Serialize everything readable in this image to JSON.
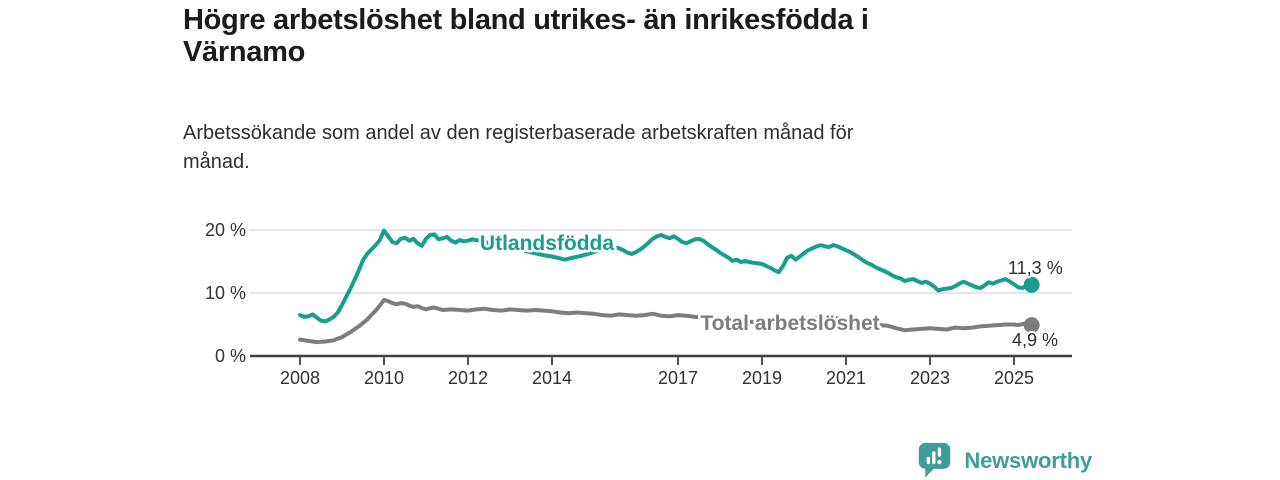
{
  "header": {
    "title": "Högre arbetslöshet bland utrikes- än inrikesfödda i\nVärnamo",
    "subtitle": "Arbetssökande som andel av den registerbaserade arbetskraften månad för\nmånad."
  },
  "footer": {
    "brand": "Newsworthy",
    "brand_color": "#3f9e96",
    "logo_icon": "bar-chart-speech-bubble-icon"
  },
  "chart_data": {
    "type": "line",
    "unit": "%",
    "grid": "horizontal",
    "legend_position": "inline-labels",
    "x_ticks": [
      2008,
      2010,
      2012,
      2014,
      2017,
      2019,
      2021,
      2023,
      2025
    ],
    "x_range": [
      2006.8,
      2026.4
    ],
    "y_ticks": [
      {
        "value": 0,
        "label": "0 %"
      },
      {
        "value": 10,
        "label": "10 %"
      },
      {
        "value": 20,
        "label": "20 %"
      }
    ],
    "y_range": [
      0,
      21
    ],
    "colors": {
      "grid": "#dedede",
      "axis": "#3f3f3f",
      "tick_text": "#333333",
      "end_label_text": "#2e2e2e"
    },
    "series": [
      {
        "name": "Utlandsfödda",
        "color": "#179e8c",
        "end_label": "11,3 %",
        "end_value": 11.3,
        "points": [
          [
            2008.0,
            6.5
          ],
          [
            2008.1,
            6.2
          ],
          [
            2008.2,
            6.3
          ],
          [
            2008.3,
            6.6
          ],
          [
            2008.4,
            6.1
          ],
          [
            2008.5,
            5.6
          ],
          [
            2008.6,
            5.5
          ],
          [
            2008.7,
            5.8
          ],
          [
            2008.8,
            6.2
          ],
          [
            2008.9,
            6.9
          ],
          [
            2009.0,
            8.1
          ],
          [
            2009.1,
            9.4
          ],
          [
            2009.2,
            10.7
          ],
          [
            2009.3,
            12.1
          ],
          [
            2009.4,
            13.6
          ],
          [
            2009.5,
            15.2
          ],
          [
            2009.6,
            16.2
          ],
          [
            2009.7,
            16.9
          ],
          [
            2009.8,
            17.6
          ],
          [
            2009.9,
            18.4
          ],
          [
            2010.0,
            19.9
          ],
          [
            2010.1,
            19.0
          ],
          [
            2010.2,
            18.1
          ],
          [
            2010.3,
            17.9
          ],
          [
            2010.4,
            18.6
          ],
          [
            2010.5,
            18.8
          ],
          [
            2010.6,
            18.3
          ],
          [
            2010.7,
            18.6
          ],
          [
            2010.8,
            17.9
          ],
          [
            2010.9,
            17.5
          ],
          [
            2011.0,
            18.6
          ],
          [
            2011.1,
            19.2
          ],
          [
            2011.2,
            19.3
          ],
          [
            2011.3,
            18.5
          ],
          [
            2011.4,
            18.7
          ],
          [
            2011.5,
            18.9
          ],
          [
            2011.6,
            18.3
          ],
          [
            2011.7,
            18.0
          ],
          [
            2011.8,
            18.4
          ],
          [
            2011.9,
            18.2
          ],
          [
            2012.0,
            18.3
          ],
          [
            2012.1,
            18.5
          ],
          [
            2012.2,
            18.4
          ],
          [
            2012.4,
            18.1
          ],
          [
            2012.6,
            17.8
          ],
          [
            2012.8,
            17.5
          ],
          [
            2013.0,
            17.2
          ],
          [
            2013.2,
            16.9
          ],
          [
            2013.4,
            16.6
          ],
          [
            2013.6,
            16.3
          ],
          [
            2013.8,
            16.0
          ],
          [
            2014.0,
            15.8
          ],
          [
            2014.2,
            15.5
          ],
          [
            2014.3,
            15.3
          ],
          [
            2014.5,
            15.6
          ],
          [
            2014.7,
            15.9
          ],
          [
            2014.9,
            16.3
          ],
          [
            2015.1,
            16.7
          ],
          [
            2015.3,
            17.0
          ],
          [
            2015.5,
            17.2
          ],
          [
            2015.6,
            17.1
          ],
          [
            2015.7,
            16.8
          ],
          [
            2015.8,
            16.4
          ],
          [
            2015.9,
            16.2
          ],
          [
            2016.0,
            16.5
          ],
          [
            2016.1,
            16.9
          ],
          [
            2016.2,
            17.4
          ],
          [
            2016.3,
            18.0
          ],
          [
            2016.4,
            18.6
          ],
          [
            2016.5,
            19.0
          ],
          [
            2016.6,
            19.2
          ],
          [
            2016.7,
            18.9
          ],
          [
            2016.8,
            18.7
          ],
          [
            2016.9,
            19.0
          ],
          [
            2017.0,
            18.6
          ],
          [
            2017.1,
            18.1
          ],
          [
            2017.2,
            17.9
          ],
          [
            2017.3,
            18.2
          ],
          [
            2017.4,
            18.5
          ],
          [
            2017.5,
            18.6
          ],
          [
            2017.6,
            18.3
          ],
          [
            2017.7,
            17.8
          ],
          [
            2017.8,
            17.3
          ],
          [
            2017.9,
            16.9
          ],
          [
            2018.0,
            16.4
          ],
          [
            2018.1,
            16.0
          ],
          [
            2018.2,
            15.6
          ],
          [
            2018.3,
            15.1
          ],
          [
            2018.4,
            15.3
          ],
          [
            2018.5,
            14.9
          ],
          [
            2018.6,
            15.1
          ],
          [
            2018.7,
            14.9
          ],
          [
            2018.8,
            14.8
          ],
          [
            2018.9,
            14.7
          ],
          [
            2019.0,
            14.6
          ],
          [
            2019.1,
            14.3
          ],
          [
            2019.2,
            14.0
          ],
          [
            2019.3,
            13.6
          ],
          [
            2019.4,
            13.3
          ],
          [
            2019.5,
            14.3
          ],
          [
            2019.6,
            15.6
          ],
          [
            2019.7,
            15.9
          ],
          [
            2019.8,
            15.3
          ],
          [
            2019.9,
            15.8
          ],
          [
            2020.0,
            16.3
          ],
          [
            2020.1,
            16.8
          ],
          [
            2020.2,
            17.1
          ],
          [
            2020.3,
            17.4
          ],
          [
            2020.4,
            17.6
          ],
          [
            2020.5,
            17.4
          ],
          [
            2020.6,
            17.3
          ],
          [
            2020.7,
            17.6
          ],
          [
            2020.8,
            17.4
          ],
          [
            2020.9,
            17.1
          ],
          [
            2021.0,
            16.8
          ],
          [
            2021.1,
            16.5
          ],
          [
            2021.2,
            16.1
          ],
          [
            2021.3,
            15.7
          ],
          [
            2021.4,
            15.2
          ],
          [
            2021.5,
            14.8
          ],
          [
            2021.6,
            14.5
          ],
          [
            2021.7,
            14.1
          ],
          [
            2021.8,
            13.8
          ],
          [
            2021.9,
            13.5
          ],
          [
            2022.0,
            13.2
          ],
          [
            2022.1,
            12.8
          ],
          [
            2022.2,
            12.5
          ],
          [
            2022.3,
            12.3
          ],
          [
            2022.4,
            11.9
          ],
          [
            2022.5,
            12.1
          ],
          [
            2022.6,
            12.2
          ],
          [
            2022.7,
            11.9
          ],
          [
            2022.8,
            11.6
          ],
          [
            2022.9,
            11.8
          ],
          [
            2023.0,
            11.5
          ],
          [
            2023.1,
            11.0
          ],
          [
            2023.2,
            10.4
          ],
          [
            2023.3,
            10.6
          ],
          [
            2023.4,
            10.7
          ],
          [
            2023.5,
            10.8
          ],
          [
            2023.6,
            11.1
          ],
          [
            2023.7,
            11.5
          ],
          [
            2023.8,
            11.8
          ],
          [
            2023.9,
            11.5
          ],
          [
            2024.0,
            11.2
          ],
          [
            2024.1,
            10.9
          ],
          [
            2024.2,
            10.8
          ],
          [
            2024.3,
            11.2
          ],
          [
            2024.4,
            11.7
          ],
          [
            2024.5,
            11.5
          ],
          [
            2024.6,
            11.8
          ],
          [
            2024.7,
            12.0
          ],
          [
            2024.8,
            12.2
          ],
          [
            2024.9,
            11.8
          ],
          [
            2025.0,
            11.4
          ],
          [
            2025.1,
            10.9
          ],
          [
            2025.2,
            10.8
          ],
          [
            2025.3,
            11.1
          ],
          [
            2025.42,
            11.3
          ]
        ]
      },
      {
        "name": "Total arbetslöshet",
        "color": "#7d7d7d",
        "end_label": "4,9 %",
        "end_value": 4.9,
        "points": [
          [
            2008.0,
            2.6
          ],
          [
            2008.2,
            2.4
          ],
          [
            2008.4,
            2.2
          ],
          [
            2008.6,
            2.3
          ],
          [
            2008.8,
            2.5
          ],
          [
            2009.0,
            3.0
          ],
          [
            2009.2,
            3.8
          ],
          [
            2009.4,
            4.7
          ],
          [
            2009.6,
            5.8
          ],
          [
            2009.8,
            7.2
          ],
          [
            2009.9,
            8.0
          ],
          [
            2010.0,
            8.9
          ],
          [
            2010.1,
            8.7
          ],
          [
            2010.2,
            8.4
          ],
          [
            2010.3,
            8.2
          ],
          [
            2010.4,
            8.4
          ],
          [
            2010.5,
            8.3
          ],
          [
            2010.6,
            8.0
          ],
          [
            2010.7,
            7.8
          ],
          [
            2010.8,
            7.9
          ],
          [
            2010.9,
            7.6
          ],
          [
            2011.0,
            7.4
          ],
          [
            2011.1,
            7.6
          ],
          [
            2011.2,
            7.7
          ],
          [
            2011.3,
            7.5
          ],
          [
            2011.4,
            7.3
          ],
          [
            2011.6,
            7.4
          ],
          [
            2011.8,
            7.3
          ],
          [
            2012.0,
            7.2
          ],
          [
            2012.2,
            7.4
          ],
          [
            2012.4,
            7.5
          ],
          [
            2012.6,
            7.3
          ],
          [
            2012.8,
            7.2
          ],
          [
            2013.0,
            7.4
          ],
          [
            2013.2,
            7.3
          ],
          [
            2013.4,
            7.2
          ],
          [
            2013.6,
            7.3
          ],
          [
            2013.8,
            7.2
          ],
          [
            2014.0,
            7.1
          ],
          [
            2014.2,
            6.9
          ],
          [
            2014.4,
            6.8
          ],
          [
            2014.6,
            6.9
          ],
          [
            2014.8,
            6.8
          ],
          [
            2015.0,
            6.7
          ],
          [
            2015.2,
            6.5
          ],
          [
            2015.4,
            6.4
          ],
          [
            2015.6,
            6.6
          ],
          [
            2015.8,
            6.5
          ],
          [
            2016.0,
            6.4
          ],
          [
            2016.2,
            6.5
          ],
          [
            2016.4,
            6.7
          ],
          [
            2016.6,
            6.4
          ],
          [
            2016.8,
            6.3
          ],
          [
            2017.0,
            6.5
          ],
          [
            2017.2,
            6.4
          ],
          [
            2017.4,
            6.2
          ],
          [
            2017.6,
            6.1
          ],
          [
            2017.8,
            5.9
          ],
          [
            2018.0,
            5.8
          ],
          [
            2018.2,
            5.7
          ],
          [
            2018.4,
            5.6
          ],
          [
            2018.6,
            5.5
          ],
          [
            2018.8,
            5.4
          ],
          [
            2019.0,
            5.3
          ],
          [
            2019.2,
            5.2
          ],
          [
            2019.4,
            5.2
          ],
          [
            2019.6,
            5.2
          ],
          [
            2019.8,
            5.3
          ],
          [
            2020.0,
            5.6
          ],
          [
            2020.2,
            5.9
          ],
          [
            2020.4,
            6.1
          ],
          [
            2020.6,
            6.2
          ],
          [
            2020.8,
            6.0
          ],
          [
            2021.0,
            5.8
          ],
          [
            2021.2,
            5.5
          ],
          [
            2021.4,
            5.3
          ],
          [
            2021.6,
            5.1
          ],
          [
            2021.8,
            4.9
          ],
          [
            2022.0,
            4.8
          ],
          [
            2022.2,
            4.4
          ],
          [
            2022.4,
            4.1
          ],
          [
            2022.6,
            4.2
          ],
          [
            2022.8,
            4.3
          ],
          [
            2023.0,
            4.4
          ],
          [
            2023.2,
            4.3
          ],
          [
            2023.4,
            4.2
          ],
          [
            2023.6,
            4.5
          ],
          [
            2023.8,
            4.4
          ],
          [
            2024.0,
            4.5
          ],
          [
            2024.2,
            4.7
          ],
          [
            2024.4,
            4.8
          ],
          [
            2024.6,
            4.9
          ],
          [
            2024.8,
            5.0
          ],
          [
            2025.0,
            5.0
          ],
          [
            2025.1,
            4.9
          ],
          [
            2025.3,
            5.2
          ],
          [
            2025.42,
            4.9
          ]
        ]
      }
    ]
  }
}
